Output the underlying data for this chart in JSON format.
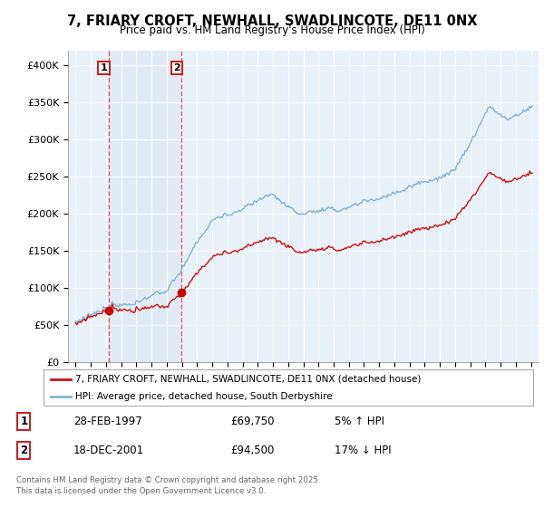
{
  "title": "7, FRIARY CROFT, NEWHALL, SWADLINCOTE, DE11 0NX",
  "subtitle": "Price paid vs. HM Land Registry's House Price Index (HPI)",
  "legend_line1": "7, FRIARY CROFT, NEWHALL, SWADLINCOTE, DE11 0NX (detached house)",
  "legend_line2": "HPI: Average price, detached house, South Derbyshire",
  "sale1_date": "28-FEB-1997",
  "sale1_price": "£69,750",
  "sale1_hpi": "5% ↑ HPI",
  "sale1_year": 1997.16,
  "sale1_value": 69750,
  "sale2_date": "18-DEC-2001",
  "sale2_price": "£94,500",
  "sale2_hpi": "17% ↓ HPI",
  "sale2_year": 2001.96,
  "sale2_value": 94500,
  "hpi_color": "#7db4d8",
  "price_color": "#cc1111",
  "marker_color": "#cc0000",
  "vline_color": "#dd4444",
  "bg_color": "#e8f0f8",
  "grid_color": "#ffffff",
  "ylim_min": 0,
  "ylim_max": 420000,
  "xlim_min": 1994.5,
  "xlim_max": 2025.5,
  "yticks": [
    0,
    50000,
    100000,
    150000,
    200000,
    250000,
    300000,
    350000,
    400000
  ],
  "footer": "Contains HM Land Registry data © Crown copyright and database right 2025.\nThis data is licensed under the Open Government Licence v3.0."
}
